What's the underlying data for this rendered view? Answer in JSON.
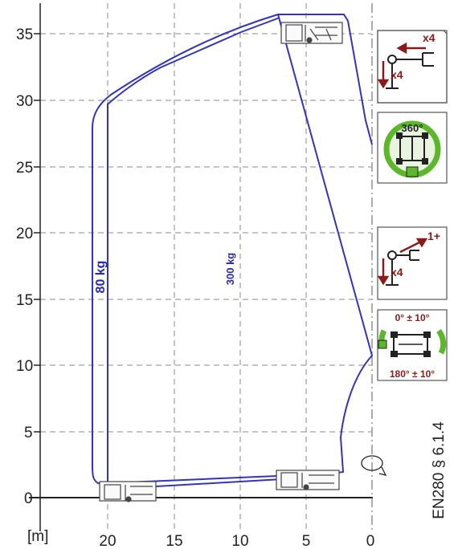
{
  "diagram": {
    "x_unit_label": "[m]",
    "x_ticks": [
      "20",
      "15",
      "10",
      "5",
      "0"
    ],
    "y_ticks": [
      "35",
      "30",
      "25",
      "20",
      "15",
      "10",
      "5",
      "0"
    ],
    "load_outer": "80 kg",
    "load_inner": "300 kg",
    "standard_ref": "EN280  § 6.1.4",
    "line_color": "#3333bb",
    "dark_red": "#8b1a1a",
    "green": "#5cb82a"
  },
  "panels": {
    "panel1": {
      "top": "x4",
      "bottom": "x4"
    },
    "panel2": {
      "angle": "360°"
    },
    "panel3": {
      "top": "1+",
      "bottom": "x4"
    },
    "panel4": {
      "top": "0° ± 10°",
      "bottom": "180° ± 10°"
    }
  }
}
